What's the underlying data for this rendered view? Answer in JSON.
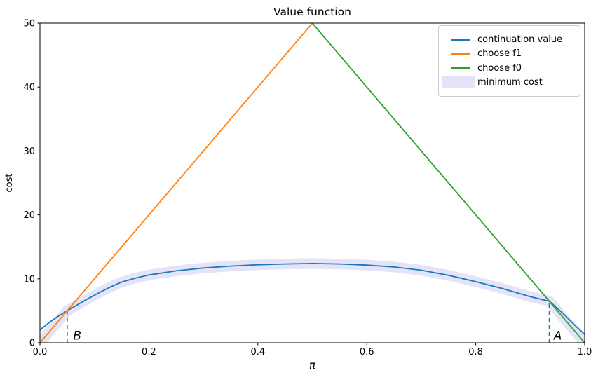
{
  "chart_data": {
    "type": "line",
    "title": "Value function",
    "xlabel": "π",
    "ylabel": "cost",
    "xlim": [
      0.0,
      1.0
    ],
    "ylim": [
      0,
      50
    ],
    "grid": false,
    "legend_position": "upper right",
    "xticks": {
      "values": [
        0.0,
        0.2,
        0.4,
        0.6,
        0.8,
        1.0
      ],
      "labels": [
        "0.0",
        "0.2",
        "0.4",
        "0.6",
        "0.8",
        "1.0"
      ]
    },
    "yticks": {
      "values": [
        0,
        10,
        20,
        30,
        40,
        50
      ],
      "labels": [
        "0",
        "10",
        "20",
        "30",
        "40",
        "50"
      ]
    },
    "series": [
      {
        "name": "continuation value",
        "color": "#1f77b4",
        "style": "line",
        "x": [
          0.0,
          0.01,
          0.02,
          0.03,
          0.04,
          0.05,
          0.065,
          0.08,
          0.095,
          0.11,
          0.13,
          0.15,
          0.175,
          0.2,
          0.25,
          0.3,
          0.35,
          0.4,
          0.45,
          0.5,
          0.55,
          0.6,
          0.65,
          0.7,
          0.75,
          0.8,
          0.85,
          0.9,
          0.935,
          0.96,
          0.98,
          1.0
        ],
        "y": [
          2.0,
          2.7,
          3.35,
          3.95,
          4.5,
          5.0,
          5.75,
          6.5,
          7.2,
          7.9,
          8.75,
          9.5,
          10.1,
          10.6,
          11.25,
          11.7,
          12.0,
          12.2,
          12.33,
          12.4,
          12.33,
          12.15,
          11.85,
          11.35,
          10.55,
          9.55,
          8.45,
          7.2,
          6.5,
          4.6,
          2.9,
          1.3
        ]
      },
      {
        "name": "choose f1",
        "color": "#ff7f0e",
        "style": "line",
        "x": [
          0.0,
          0.5
        ],
        "y": [
          0,
          50
        ]
      },
      {
        "name": "choose f0",
        "color": "#2ca02c",
        "style": "line",
        "x": [
          0.5,
          1.0
        ],
        "y": [
          50,
          0
        ]
      },
      {
        "name": "minimum cost",
        "color": "#e4e4f8",
        "style": "band",
        "band_width": 15,
        "x": [
          0.0,
          0.05,
          0.065,
          0.08,
          0.095,
          0.11,
          0.13,
          0.15,
          0.175,
          0.2,
          0.25,
          0.3,
          0.35,
          0.4,
          0.45,
          0.5,
          0.55,
          0.6,
          0.65,
          0.7,
          0.75,
          0.8,
          0.85,
          0.9,
          0.935,
          1.0
        ],
        "y": [
          0.0,
          5.0,
          5.75,
          6.5,
          7.2,
          7.9,
          8.75,
          9.5,
          10.1,
          10.6,
          11.25,
          11.7,
          12.0,
          12.2,
          12.33,
          12.4,
          12.33,
          12.15,
          11.85,
          11.35,
          10.55,
          9.55,
          8.45,
          7.2,
          6.5,
          0.0
        ]
      }
    ],
    "vlines": [
      {
        "x": 0.05,
        "y0": 0,
        "y1": 5.0,
        "color": "#1f77b4",
        "dashed": true
      },
      {
        "x": 0.935,
        "y0": 0,
        "y1": 6.5,
        "color": "#1f77b4",
        "dashed": true
      }
    ],
    "annotations": [
      {
        "text": "B",
        "x": 0.061,
        "y": 0.5
      },
      {
        "text": "A",
        "x": 0.943,
        "y": 0.5
      }
    ]
  },
  "legend": {
    "items": [
      {
        "label": "continuation value",
        "color": "#1f77b4",
        "swatch": "line"
      },
      {
        "label": "choose f1",
        "color": "#ff7f0e",
        "swatch": "line"
      },
      {
        "label": "choose f0",
        "color": "#2ca02c",
        "swatch": "line"
      },
      {
        "label": "minimum cost",
        "color": "#e4e4f8",
        "swatch": "patch"
      }
    ]
  }
}
